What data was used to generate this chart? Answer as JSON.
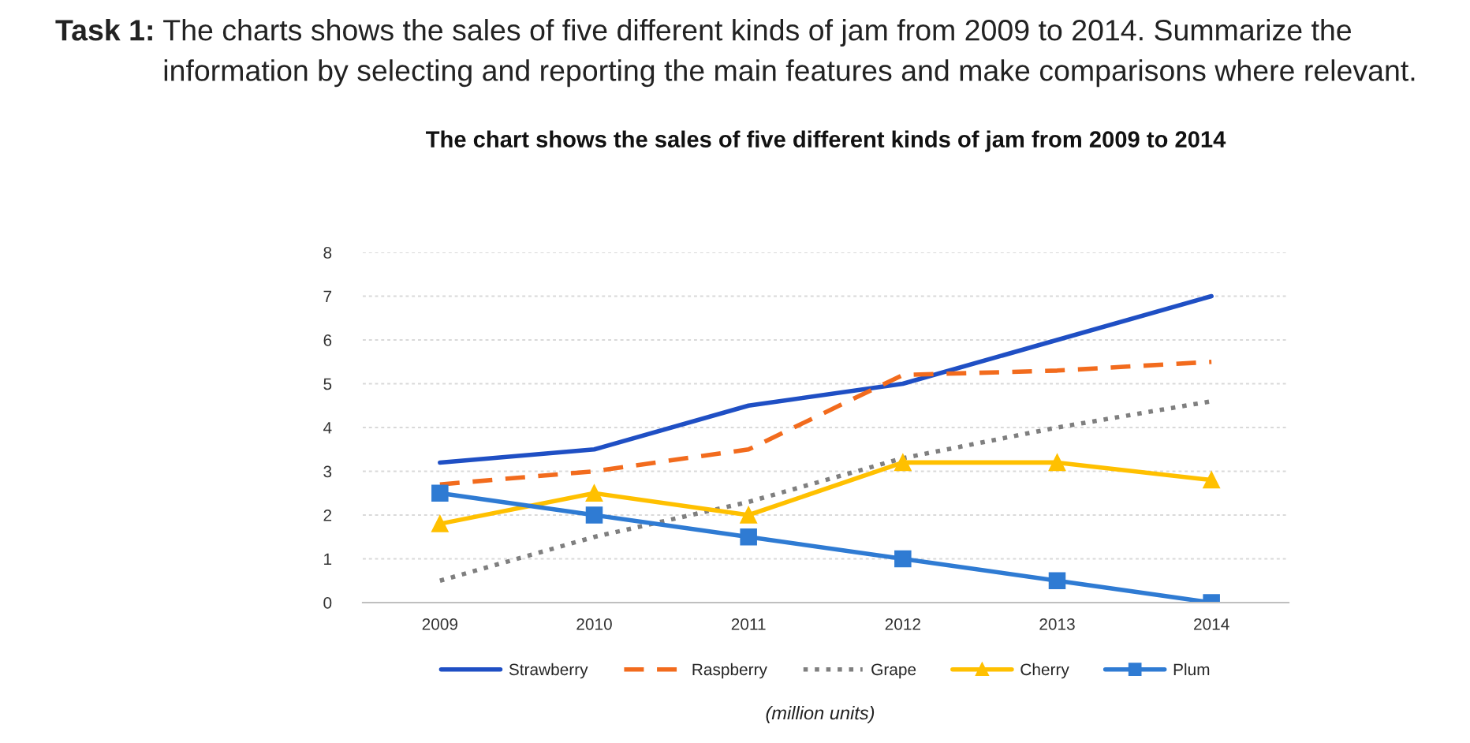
{
  "chart_data": {
    "type": "line",
    "title": "The chart shows the sales of five different kinds of jam from 2009 to 2014",
    "annotations": [
      "Task 1:",
      "The charts shows the sales of five different kinds of jam from 2009 to 2014. Summarize the information by selecting and reporting the main features and make comparisons where relevant.",
      "(million units)"
    ],
    "categories": [
      "2009",
      "2010",
      "2011",
      "2012",
      "2013",
      "2014"
    ],
    "ylim": [
      0,
      8
    ],
    "yticks": [
      0,
      1,
      2,
      3,
      4,
      5,
      6,
      7,
      8
    ],
    "grid": "y",
    "legend": "bottom",
    "series": [
      {
        "name": "Strawberry",
        "color": "#1f4fc4",
        "line_style": "solid",
        "marker": "none",
        "values": [
          3.2,
          3.5,
          4.5,
          5.0,
          6.0,
          7.0
        ]
      },
      {
        "name": "Raspberry",
        "color": "#f26b1d",
        "line_style": "dashed",
        "marker": "none",
        "values": [
          2.7,
          3.0,
          3.5,
          5.2,
          5.3,
          5.5
        ]
      },
      {
        "name": "Grape",
        "color": "#7f7f7f",
        "line_style": "dotted",
        "marker": "none",
        "values": [
          0.5,
          1.5,
          2.3,
          3.3,
          4.0,
          4.6
        ]
      },
      {
        "name": "Cherry",
        "color": "#ffc000",
        "line_style": "solid",
        "marker": "triangle",
        "values": [
          1.8,
          2.5,
          2.0,
          3.2,
          3.2,
          2.8
        ]
      },
      {
        "name": "Plum",
        "color": "#2f7bd3",
        "line_style": "solid",
        "marker": "square",
        "values": [
          2.5,
          2.0,
          1.5,
          1.0,
          0.5,
          0.0
        ]
      }
    ]
  }
}
